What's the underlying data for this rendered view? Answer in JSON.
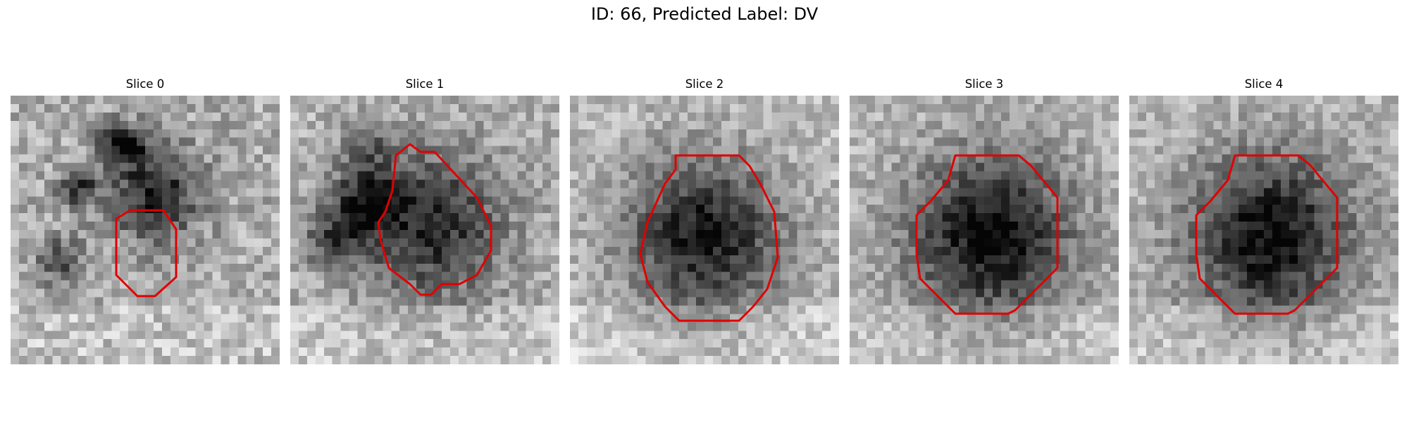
{
  "figure": {
    "title": "ID: 66, Predicted Label: DV"
  },
  "panels": [
    {
      "title": "Slice 0"
    },
    {
      "title": "Slice 1"
    },
    {
      "title": "Slice 2"
    },
    {
      "title": "Slice 3"
    },
    {
      "title": "Slice 4"
    }
  ],
  "colors": {
    "contour": "#e00000",
    "background": "#ffffff"
  }
}
